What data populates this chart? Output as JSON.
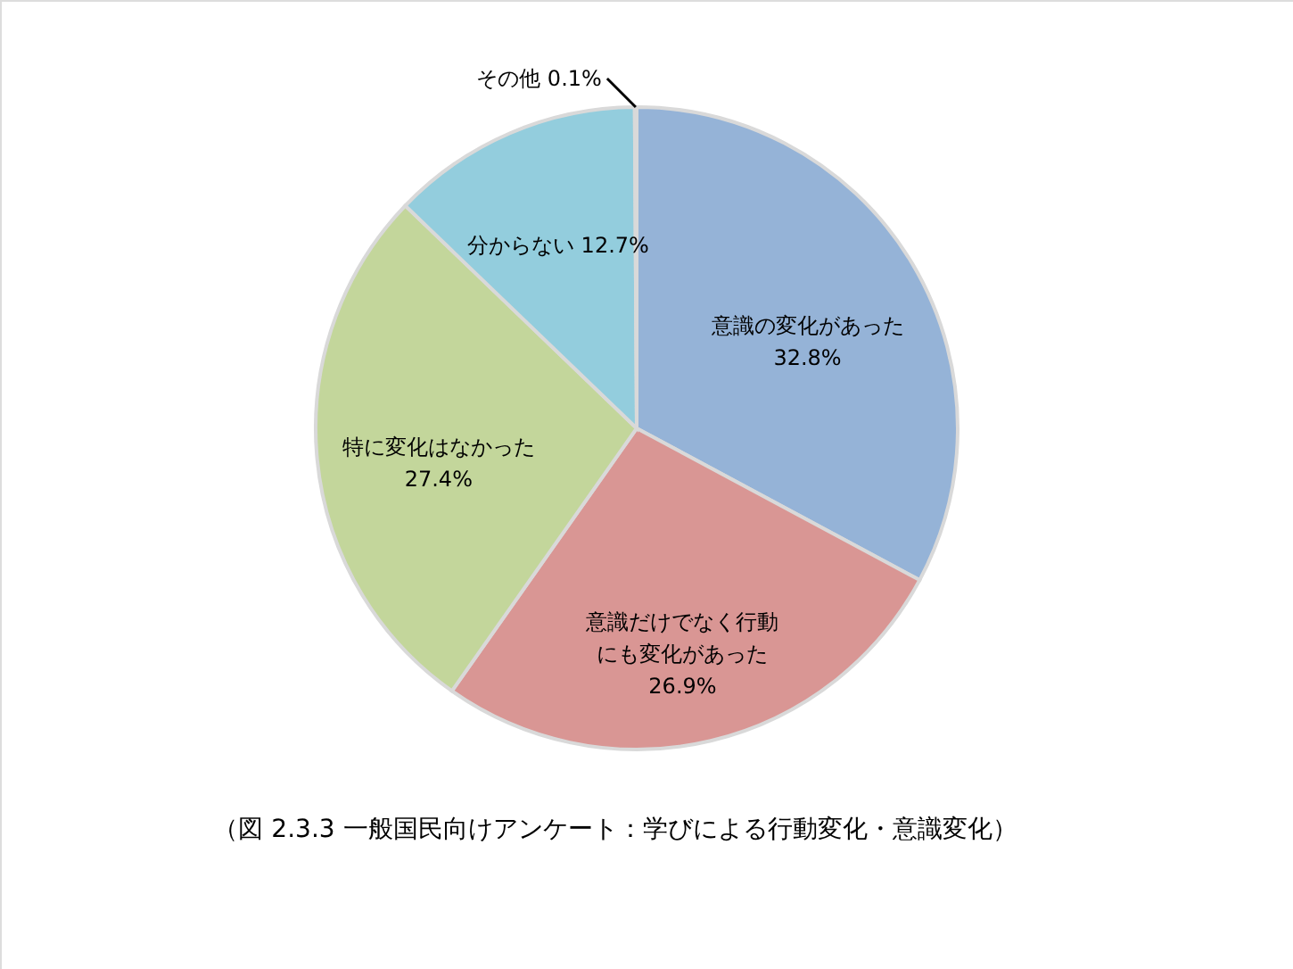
{
  "chart_data": {
    "type": "pie",
    "categories": [
      "意識の変化があった",
      "意識だけでなく行動にも変化があった",
      "特に変化はなかった",
      "分からない",
      "その他"
    ],
    "values": [
      32.8,
      26.9,
      27.4,
      12.7,
      0.1
    ],
    "colors": [
      "#95b3d7",
      "#d99694",
      "#c3d69b",
      "#93cddd",
      "#f2a86d"
    ],
    "value_labels": [
      "32.8%",
      "26.9%",
      "27.4%",
      "12.7%",
      "0.1%"
    ],
    "annotations": [
      "（図 2.3.3  一般国民向けアンケート：学びによる行動変化・意識変化）"
    ]
  }
}
